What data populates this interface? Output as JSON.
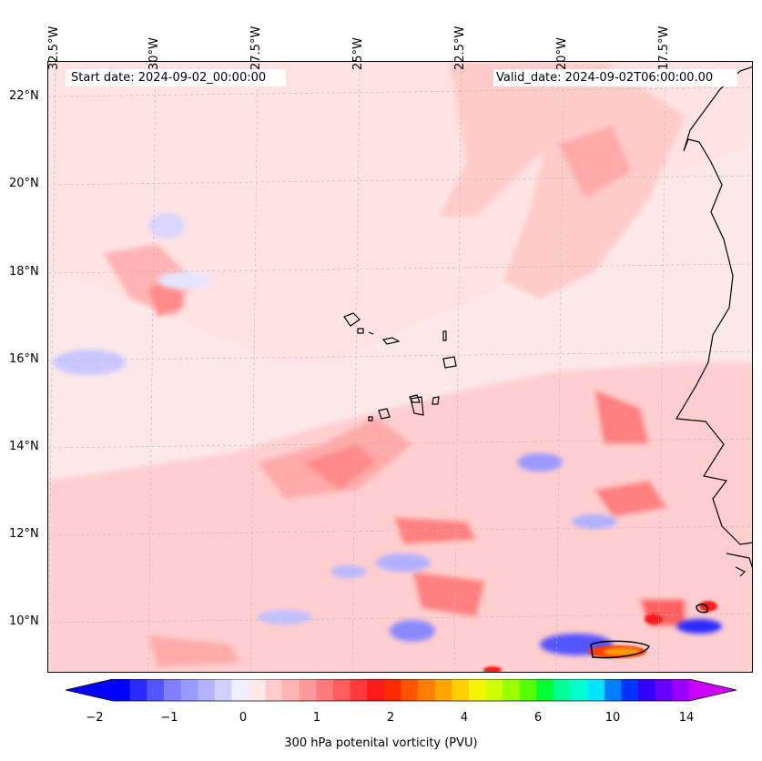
{
  "header": {
    "start_date": "Start date: 2024-09-02_00:00:00",
    "valid_date": "Valid_date: 2024-09-02T06:00:00.00"
  },
  "longitude_labels": [
    "32.5°W",
    "30°W",
    "27.5°W",
    "25°W",
    "22.5°W",
    "20°W",
    "17.5°W"
  ],
  "latitude_labels": [
    "22°N",
    "20°N",
    "18°N",
    "16°N",
    "14°N",
    "12°N",
    "10°N"
  ],
  "colorbar": {
    "title": "300 hPa potenital vorticity (PVU)",
    "tick_labels": [
      "−2",
      "−1",
      "0",
      "1",
      "2",
      "4",
      "6",
      "10",
      "14"
    ],
    "colors": [
      "#0000ff",
      "#2a2aff",
      "#5555ff",
      "#7f7fff",
      "#9999ff",
      "#b3b3ff",
      "#d0d0ff",
      "#eeeeff",
      "#ffe8e8",
      "#ffcccc",
      "#ffb3b3",
      "#ff9999",
      "#ff7a7a",
      "#ff5c5c",
      "#ff3a3a",
      "#ff1a1a",
      "#ff2a00",
      "#ff5500",
      "#ff8000",
      "#ffa500",
      "#ffd000",
      "#f5f500",
      "#ccff00",
      "#99ff00",
      "#55ff00",
      "#00ff33",
      "#00ff99",
      "#00ffcc",
      "#00e5ff",
      "#0080ff",
      "#0033ff",
      "#3300ff",
      "#6600ff",
      "#9900ff"
    ],
    "extend_low_color": "#0000ff",
    "extend_high_color": "#cc00ff"
  },
  "map": {
    "background_color": "#fdecec",
    "coastline_color": "#000000",
    "gridline_color": "#bbbbbb"
  }
}
